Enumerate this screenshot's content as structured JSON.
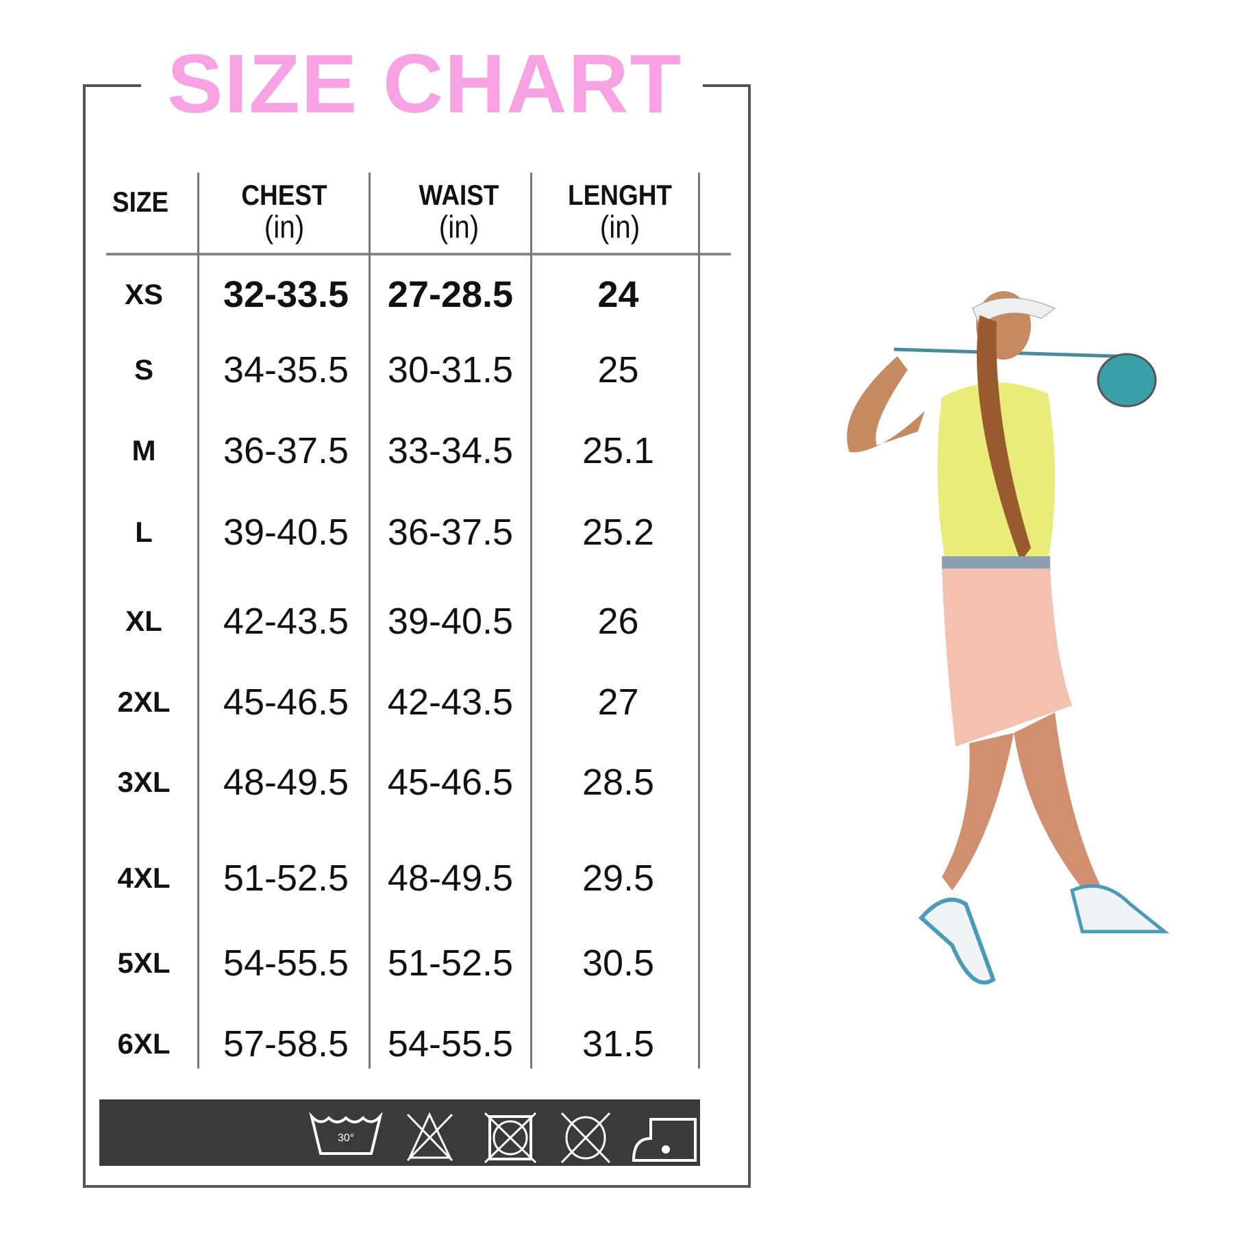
{
  "title": "SIZE CHART",
  "colors": {
    "title": "#f7a2e2",
    "care_bar": "#3a3a3a"
  },
  "table": {
    "headers": [
      {
        "label": "SIZE",
        "unit": ""
      },
      {
        "label": "CHEST",
        "unit": "(in)"
      },
      {
        "label": "WAIST",
        "unit": "(in)"
      },
      {
        "label": "LENGHT",
        "unit": "(in)"
      }
    ],
    "rows": [
      {
        "size": "XS",
        "chest": "32-33.5",
        "waist": "27-28.5",
        "length": "24"
      },
      {
        "size": "S",
        "chest": "34-35.5",
        "waist": "30-31.5",
        "length": "25"
      },
      {
        "size": "M",
        "chest": "36-37.5",
        "waist": "33-34.5",
        "length": "25.1"
      },
      {
        "size": "L",
        "chest": "39-40.5",
        "waist": "36-37.5",
        "length": "25.2"
      },
      {
        "size": "XL",
        "chest": "42-43.5",
        "waist": "39-40.5",
        "length": "26"
      },
      {
        "size": "2XL",
        "chest": "45-46.5",
        "waist": "42-43.5",
        "length": "27"
      },
      {
        "size": "3XL",
        "chest": "48-49.5",
        "waist": "45-46.5",
        "length": "28.5"
      },
      {
        "size": "4XL",
        "chest": "51-52.5",
        "waist": "48-49.5",
        "length": "29.5"
      },
      {
        "size": "5XL",
        "chest": "54-55.5",
        "waist": "51-52.5",
        "length": "30.5"
      },
      {
        "size": "6XL",
        "chest": "57-58.5",
        "waist": "54-55.5",
        "length": "31.5"
      }
    ]
  },
  "care": {
    "wash_temp": "30°",
    "icons": [
      "wash-30-icon",
      "no-bleach-icon",
      "no-tumble-dry-icon",
      "no-dry-clean-icon",
      "iron-low-icon"
    ]
  }
}
